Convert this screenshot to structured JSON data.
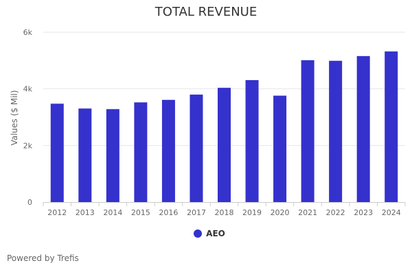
{
  "chart_data": {
    "type": "bar",
    "title": "TOTAL REVENUE",
    "xlabel": "",
    "ylabel": "Values ($ Mil)",
    "categories": [
      "2012",
      "2013",
      "2014",
      "2015",
      "2016",
      "2017",
      "2018",
      "2019",
      "2020",
      "2021",
      "2022",
      "2023",
      "2024"
    ],
    "series": [
      {
        "name": "AEO",
        "color": "#3531cc",
        "values": [
          3475,
          3305,
          3283,
          3522,
          3610,
          3796,
          4036,
          4308,
          3759,
          5011,
          4990,
          5157,
          5320
        ]
      }
    ],
    "ylim": [
      0,
      6000
    ],
    "yticks": [
      0,
      2000,
      4000,
      6000
    ],
    "ytick_labels": [
      "0",
      "2k",
      "4k",
      "6k"
    ],
    "grid": true,
    "legend_position": "bottom"
  },
  "credit": "Powered by Trefis"
}
